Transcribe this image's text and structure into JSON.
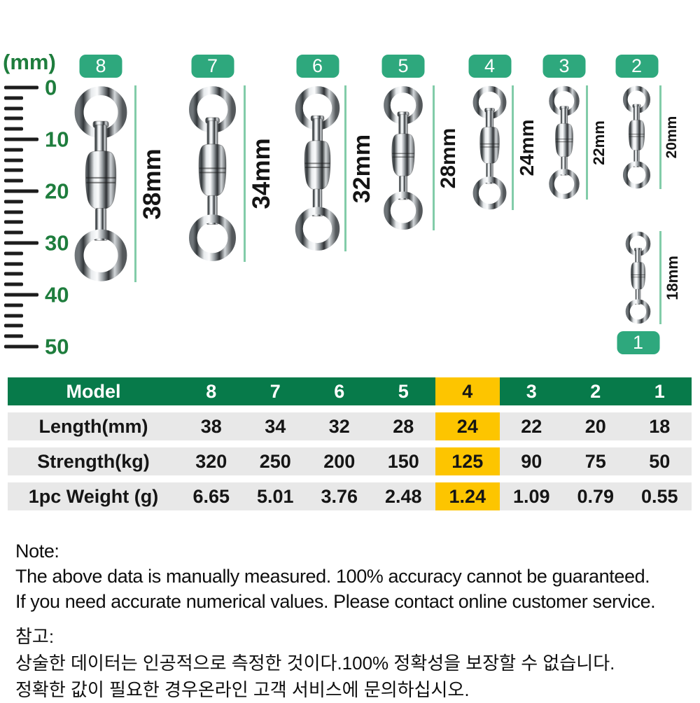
{
  "colors": {
    "badge_green": "#2EA87D",
    "table_header_green": "#077A4A",
    "highlight_yellow": "#FDC500",
    "row_gray": "#E8E8E8",
    "ruler_text_green": "#1E7D3D",
    "measure_line_green": "#82CCA9"
  },
  "ruler": {
    "unit_label": "(mm)",
    "major_labels": [
      "0",
      "10",
      "20",
      "30",
      "40",
      "50"
    ],
    "minor_ticks_per_major": 4
  },
  "figures": [
    {
      "model": "8",
      "length_label": "38mm"
    },
    {
      "model": "7",
      "length_label": "34mm"
    },
    {
      "model": "6",
      "length_label": "32mm"
    },
    {
      "model": "5",
      "length_label": "28mm"
    },
    {
      "model": "4",
      "length_label": "24mm"
    },
    {
      "model": "3",
      "length_label": "22mm"
    },
    {
      "model": "2",
      "length_label": "20mm"
    },
    {
      "model": "1",
      "length_label": "18mm"
    }
  ],
  "table": {
    "header": {
      "label": "Model",
      "values": [
        "8",
        "7",
        "6",
        "5",
        "4",
        "3",
        "2",
        "1"
      ]
    },
    "highlighted_model": "4",
    "rows": [
      {
        "label": "Length(mm)",
        "values": [
          "38",
          "34",
          "32",
          "28",
          "24",
          "22",
          "20",
          "18"
        ]
      },
      {
        "label": "Strength(kg)",
        "values": [
          "320",
          "250",
          "200",
          "150",
          "125",
          "90",
          "75",
          "50"
        ]
      },
      {
        "label": "1pc Weight (g)",
        "values": [
          "6.65",
          "5.01",
          "3.76",
          "2.48",
          "1.24",
          "1.09",
          "0.79",
          "0.55"
        ]
      }
    ]
  },
  "note_en": {
    "title": "Note:",
    "lines": [
      "The above data is manually measured. 100% accuracy cannot be guaranteed.",
      "If you need accurate numerical values. Please contact online customer service."
    ]
  },
  "note_kr": {
    "title": "참고:",
    "lines": [
      "상술한 데이터는 인공적으로 측정한 것이다.100% 정확성을 보장할 수 없습니다.",
      "정확한 값이 필요한 경우온라인 고객 서비스에 문의하십시오."
    ]
  }
}
